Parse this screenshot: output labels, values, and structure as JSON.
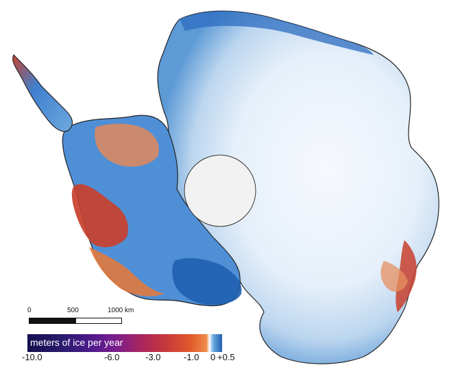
{
  "map": {
    "subject": "Antarctica ice thickness change",
    "scale_bar": {
      "ticks": [
        "0",
        "500",
        "1000 km"
      ]
    },
    "legend": {
      "title": "meters of ice per year",
      "ticks": [
        "-10.0",
        "-6.0",
        "-3.0",
        "-1.0",
        "0",
        "+0.5"
      ]
    },
    "colors": {
      "strong_loss": "#15104f",
      "moderate_loss": "#c93a3a",
      "slight_loss": "#f08c4a",
      "no_change": "#f4f8fc",
      "gain": "#1f5fb0",
      "light_gain": "#6aa8de",
      "pole_hole": "#f2f2f2",
      "coastline": "#222222"
    }
  }
}
